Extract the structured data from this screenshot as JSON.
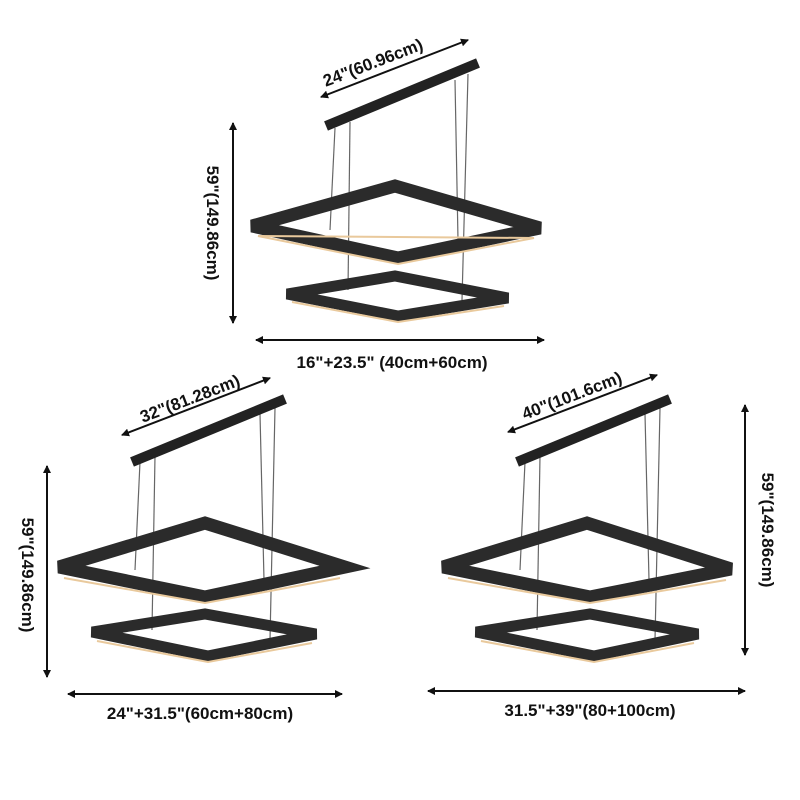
{
  "colors": {
    "frame": "#2b2b2b",
    "glow": "#e9c99c",
    "wire": "#666666",
    "dimension": "#111111"
  },
  "lamps": [
    {
      "canopy_length": "24\"(60.96cm)",
      "height": "59\"(149.86cm)",
      "width": "16\"+23.5\" (40cm+60cm)"
    },
    {
      "canopy_length": "32\"(81.28cm)",
      "height": "59\"(149.86cm)",
      "width": "24\"+31.5\"(60cm+80cm)"
    },
    {
      "canopy_length": "40\"(101.6cm)",
      "height": "59\"(149.86cm)",
      "width": "31.5\"+39\"(80+100cm)"
    }
  ]
}
